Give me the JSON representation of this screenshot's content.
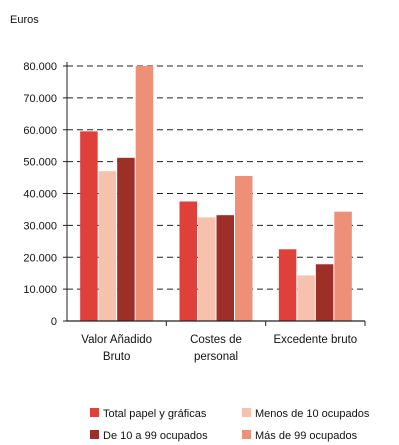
{
  "chart_data": {
    "type": "bar",
    "unit_label": "Euros",
    "title": "",
    "xlabel": "",
    "ylabel": "Euros",
    "ylim": [
      0,
      80000
    ],
    "y_ticks": [
      "0",
      "10.000",
      "20.000",
      "30.000",
      "40.000",
      "50.000",
      "60.000",
      "70.000",
      "80.000"
    ],
    "grid": true,
    "legend_position": "bottom",
    "categories": [
      [
        "Valor Añadido",
        "Bruto"
      ],
      [
        "Costes de",
        "personal"
      ],
      [
        "Excedente bruto"
      ]
    ],
    "series": [
      {
        "name": "Total papel y gráficas",
        "color": "#e0403a",
        "values": [
          59500,
          37500,
          22500
        ]
      },
      {
        "name": "Menos de 10 ocupados",
        "color": "#f6c1ad",
        "values": [
          47000,
          32500,
          14300
        ]
      },
      {
        "name": "De 10 a 99 ocupados",
        "color": "#9c2f27",
        "values": [
          51200,
          33200,
          17800
        ]
      },
      {
        "name": "Más de 99 ocupados",
        "color": "#ee8f78",
        "values": [
          80000,
          45500,
          34300
        ]
      }
    ]
  }
}
